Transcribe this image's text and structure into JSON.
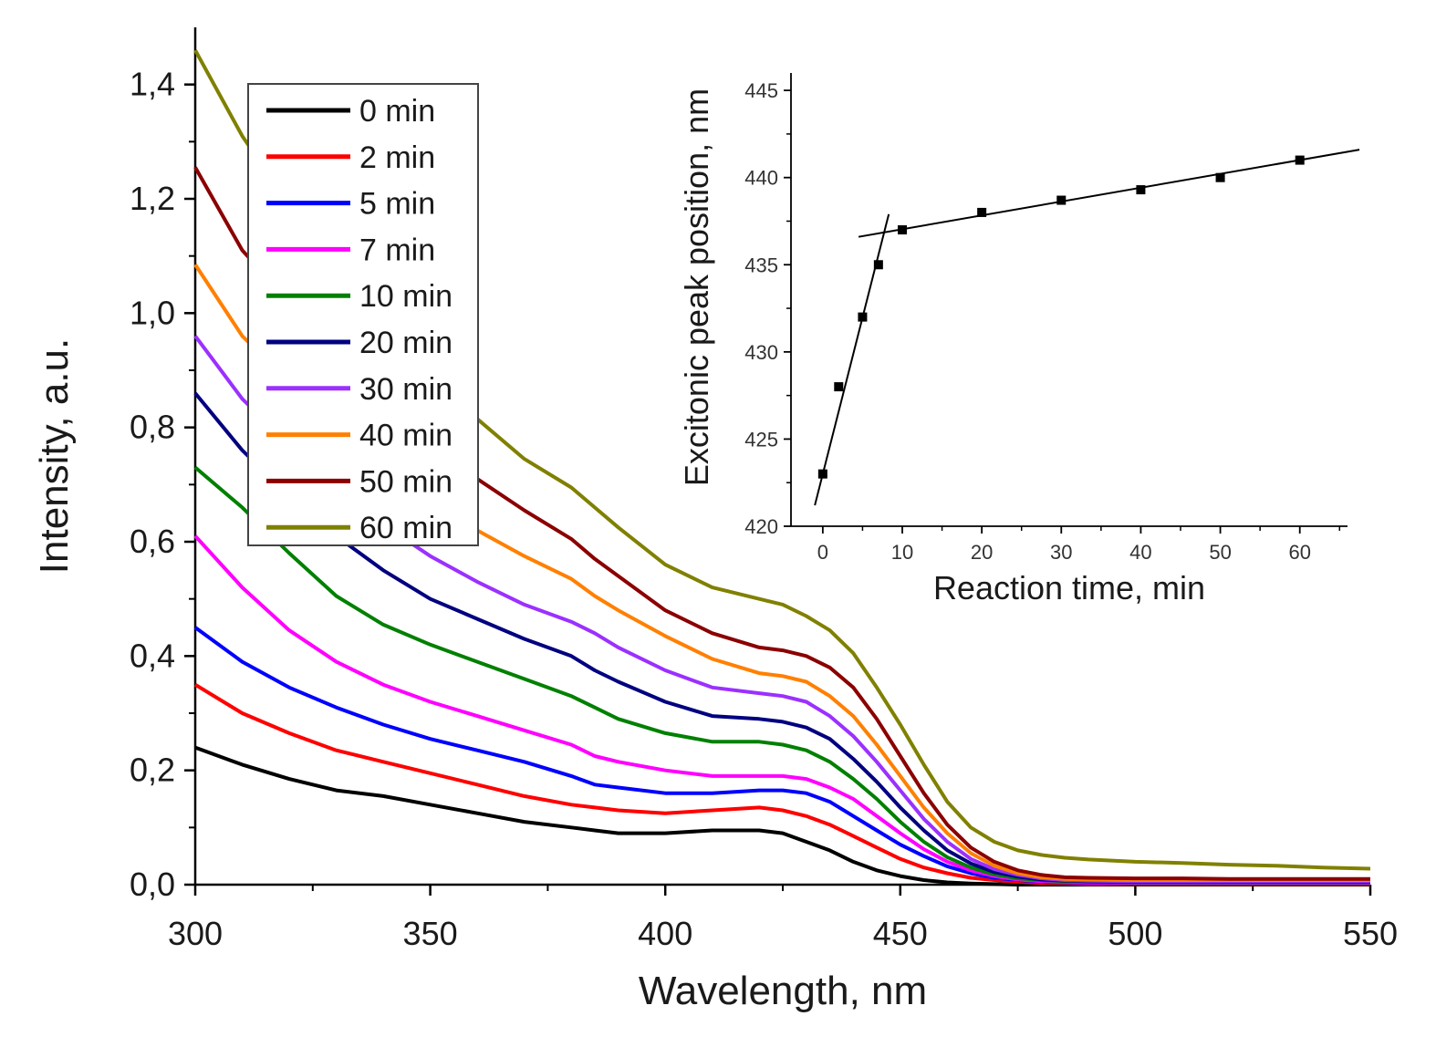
{
  "chart_data": [
    {
      "type": "line",
      "xlabel": "Wavelength, nm",
      "ylabel": "Intensity, a.u.",
      "xlim": [
        300,
        550
      ],
      "ylim": [
        0,
        1.5
      ],
      "x_ticks": [
        "300",
        "350",
        "400",
        "450",
        "500",
        "550"
      ],
      "y_ticks": [
        "0,0",
        "0,2",
        "0,4",
        "0,6",
        "0,8",
        "1,0",
        "1,2",
        "1,4"
      ],
      "legend_position": "top-left",
      "x": [
        300,
        310,
        320,
        330,
        340,
        350,
        360,
        370,
        380,
        385,
        390,
        400,
        410,
        420,
        425,
        430,
        435,
        440,
        445,
        450,
        455,
        460,
        465,
        470,
        475,
        480,
        485,
        490,
        500,
        510,
        520,
        530,
        540,
        550
      ],
      "series": [
        {
          "name": "0 min",
          "color": "#000000",
          "values": [
            0.24,
            0.21,
            0.185,
            0.165,
            0.155,
            0.14,
            0.125,
            0.11,
            0.1,
            0.095,
            0.09,
            0.09,
            0.095,
            0.095,
            0.09,
            0.075,
            0.06,
            0.04,
            0.025,
            0.015,
            0.008,
            0.004,
            0.002,
            0.001,
            0.0,
            0.0,
            0.0,
            0.0,
            0.0,
            0.0,
            0.0,
            0.0,
            0.0,
            0.0
          ]
        },
        {
          "name": "2 min",
          "color": "#ff0000",
          "values": [
            0.35,
            0.3,
            0.265,
            0.235,
            0.215,
            0.195,
            0.175,
            0.155,
            0.14,
            0.135,
            0.13,
            0.125,
            0.13,
            0.135,
            0.13,
            0.12,
            0.105,
            0.085,
            0.065,
            0.045,
            0.03,
            0.02,
            0.012,
            0.008,
            0.005,
            0.003,
            0.002,
            0.001,
            0.001,
            0.001,
            0.001,
            0.001,
            0.001,
            0.001
          ]
        },
        {
          "name": "5 min",
          "color": "#0000ff",
          "values": [
            0.45,
            0.39,
            0.345,
            0.31,
            0.28,
            0.255,
            0.235,
            0.215,
            0.19,
            0.175,
            0.17,
            0.16,
            0.16,
            0.165,
            0.165,
            0.16,
            0.145,
            0.12,
            0.095,
            0.07,
            0.05,
            0.032,
            0.02,
            0.012,
            0.008,
            0.005,
            0.004,
            0.003,
            0.002,
            0.002,
            0.002,
            0.002,
            0.002,
            0.002
          ]
        },
        {
          "name": "7 min",
          "color": "#ff00ff",
          "values": [
            0.61,
            0.52,
            0.445,
            0.39,
            0.35,
            0.32,
            0.295,
            0.27,
            0.245,
            0.225,
            0.215,
            0.2,
            0.19,
            0.19,
            0.19,
            0.185,
            0.17,
            0.15,
            0.12,
            0.09,
            0.062,
            0.04,
            0.025,
            0.015,
            0.009,
            0.006,
            0.005,
            0.004,
            0.003,
            0.003,
            0.003,
            0.003,
            0.003,
            0.003
          ]
        },
        {
          "name": "10 min",
          "color": "#008000",
          "values": [
            0.73,
            0.66,
            0.58,
            0.505,
            0.455,
            0.42,
            0.39,
            0.36,
            0.33,
            0.31,
            0.29,
            0.265,
            0.25,
            0.25,
            0.245,
            0.235,
            0.215,
            0.185,
            0.15,
            0.11,
            0.075,
            0.048,
            0.03,
            0.018,
            0.011,
            0.008,
            0.006,
            0.005,
            0.004,
            0.004,
            0.004,
            0.004,
            0.004,
            0.004
          ]
        },
        {
          "name": "20 min",
          "color": "#000080",
          "values": [
            0.86,
            0.76,
            0.68,
            0.61,
            0.55,
            0.5,
            0.465,
            0.43,
            0.4,
            0.375,
            0.355,
            0.32,
            0.295,
            0.29,
            0.285,
            0.275,
            0.255,
            0.22,
            0.18,
            0.135,
            0.095,
            0.06,
            0.037,
            0.022,
            0.014,
            0.009,
            0.007,
            0.006,
            0.005,
            0.005,
            0.005,
            0.005,
            0.005,
            0.005
          ]
        },
        {
          "name": "30 min",
          "color": "#9b30ff",
          "values": [
            0.96,
            0.85,
            0.77,
            0.69,
            0.63,
            0.575,
            0.53,
            0.49,
            0.46,
            0.44,
            0.415,
            0.375,
            0.345,
            0.335,
            0.33,
            0.32,
            0.295,
            0.26,
            0.215,
            0.165,
            0.115,
            0.075,
            0.045,
            0.027,
            0.017,
            0.011,
            0.008,
            0.007,
            0.006,
            0.006,
            0.006,
            0.006,
            0.006,
            0.006
          ]
        },
        {
          "name": "40 min",
          "color": "#ff8000",
          "values": [
            1.085,
            0.96,
            0.88,
            0.8,
            0.73,
            0.67,
            0.62,
            0.575,
            0.535,
            0.505,
            0.48,
            0.435,
            0.395,
            0.37,
            0.365,
            0.355,
            0.33,
            0.295,
            0.245,
            0.19,
            0.135,
            0.09,
            0.055,
            0.033,
            0.02,
            0.013,
            0.01,
            0.009,
            0.008,
            0.008,
            0.008,
            0.008,
            0.008,
            0.008
          ]
        },
        {
          "name": "50 min",
          "color": "#8b0000",
          "values": [
            1.255,
            1.11,
            1.02,
            0.92,
            0.84,
            0.77,
            0.71,
            0.655,
            0.605,
            0.57,
            0.54,
            0.48,
            0.44,
            0.415,
            0.41,
            0.4,
            0.38,
            0.345,
            0.29,
            0.225,
            0.16,
            0.105,
            0.065,
            0.04,
            0.025,
            0.017,
            0.013,
            0.012,
            0.011,
            0.011,
            0.01,
            0.01,
            0.01,
            0.01
          ]
        },
        {
          "name": "60 min",
          "color": "#808000",
          "values": [
            1.46,
            1.31,
            1.19,
            1.06,
            0.97,
            0.885,
            0.815,
            0.745,
            0.695,
            0.66,
            0.625,
            0.56,
            0.52,
            0.5,
            0.49,
            0.47,
            0.445,
            0.405,
            0.345,
            0.28,
            0.21,
            0.145,
            0.1,
            0.075,
            0.06,
            0.052,
            0.047,
            0.044,
            0.04,
            0.038,
            0.035,
            0.033,
            0.03,
            0.028
          ]
        }
      ]
    },
    {
      "type": "scatter",
      "xlabel": "Reaction time, min",
      "ylabel": "Excitonic peak position, nm",
      "xlim": [
        -4,
        66
      ],
      "ylim": [
        420,
        446
      ],
      "x_ticks": [
        "0",
        "10",
        "20",
        "30",
        "40",
        "50",
        "60"
      ],
      "y_ticks": [
        "420",
        "425",
        "430",
        "435",
        "440",
        "445"
      ],
      "x": [
        0,
        2,
        5,
        7,
        10,
        20,
        30,
        40,
        50,
        60
      ],
      "values": [
        423,
        428,
        432,
        435,
        437,
        438,
        438.7,
        439.3,
        440,
        441
      ],
      "fit_lines": [
        {
          "x": [
            -1,
            8.3
          ],
          "values": [
            421.2,
            437.9
          ]
        },
        {
          "x": [
            4.5,
            67.5
          ],
          "values": [
            436.6,
            441.6
          ]
        }
      ]
    }
  ]
}
